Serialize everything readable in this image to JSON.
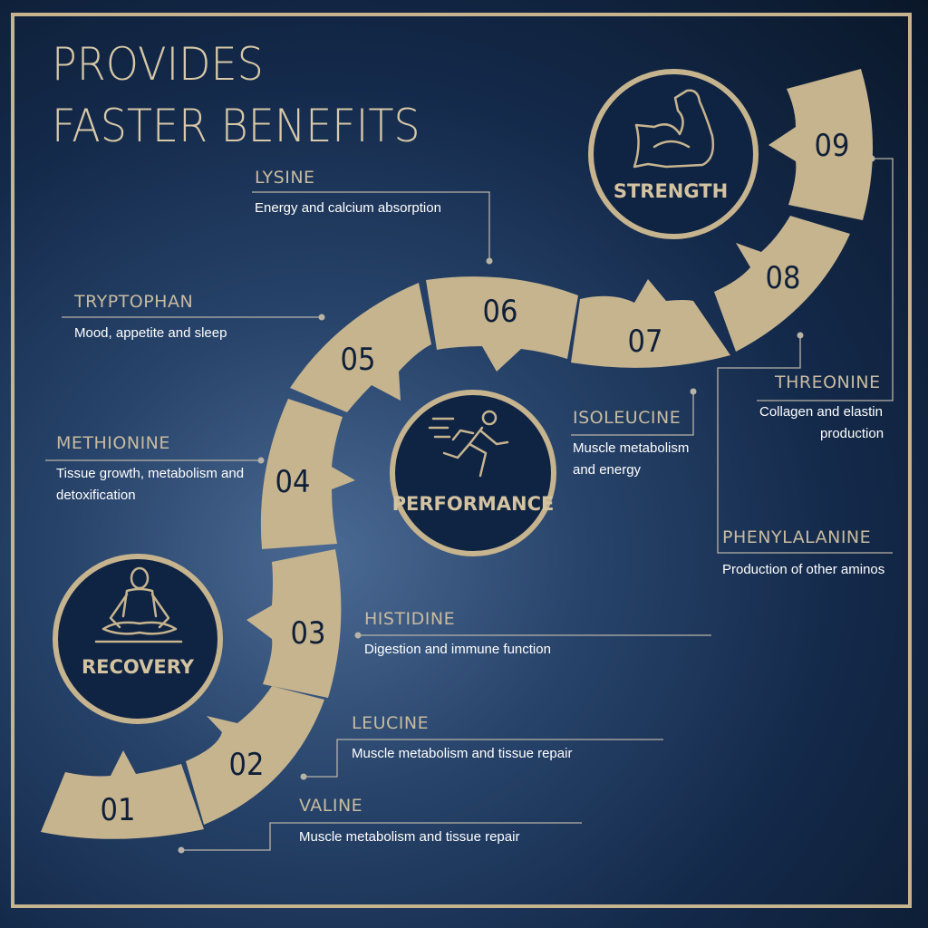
{
  "title": {
    "line1": "PROVIDES",
    "line2": "FASTER BENEFITS"
  },
  "colors": {
    "accent": "#c6b48f",
    "circle_fill": "#0f2343",
    "background": "#142a4b"
  },
  "steps": [
    "01",
    "02",
    "03",
    "04",
    "05",
    "06",
    "07",
    "08",
    "09"
  ],
  "benefits": [
    {
      "label": "RECOVERY",
      "icon": "meditation-icon"
    },
    {
      "label": "PERFORMANCE",
      "icon": "runner-icon"
    },
    {
      "label": "STRENGTH",
      "icon": "flexed-arm-icon"
    }
  ],
  "amino_acids": [
    {
      "step": "01",
      "name": "VALINE",
      "description": "Muscle metabolism and tissue repair"
    },
    {
      "step": "02",
      "name": "LEUCINE",
      "description": "Muscle metabolism and tissue repair"
    },
    {
      "step": "03",
      "name": "HISTIDINE",
      "description": "Digestion and immune function"
    },
    {
      "step": "04",
      "name": "METHIONINE",
      "description_line1": "Tissue growth, metabolism and",
      "description_line2": "detoxification"
    },
    {
      "step": "05",
      "name": "TRYPTOPHAN",
      "description": "Mood, appetite and sleep"
    },
    {
      "step": "06",
      "name": "LYSINE",
      "description": "Energy and calcium absorption"
    },
    {
      "step": "07",
      "name": "ISOLEUCINE",
      "description_line1": "Muscle metabolism",
      "description_line2": "and energy"
    },
    {
      "step": "08",
      "name": "PHENYLALANINE",
      "description": "Production of other aminos"
    },
    {
      "step": "09",
      "name": "THREONINE",
      "description_line1": "Collagen and elastin",
      "description_line2": "production"
    }
  ]
}
